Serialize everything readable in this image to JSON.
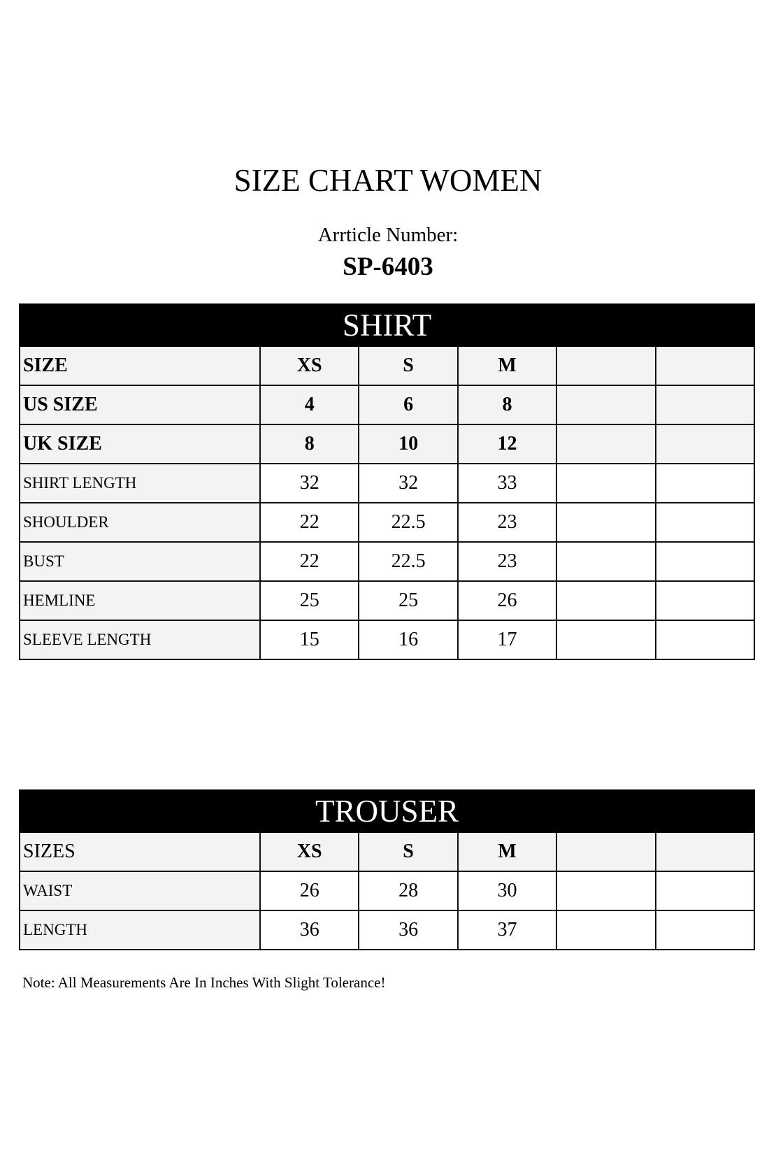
{
  "title": "SIZE CHART WOMEN",
  "article_label": "Arrticle Number:",
  "article_number": "SP-6403",
  "shirt": {
    "heading": "SHIRT",
    "header_rows": [
      {
        "label": "SIZE",
        "values": [
          "XS",
          "S",
          "M",
          "",
          ""
        ]
      },
      {
        "label": "US SIZE",
        "values": [
          "4",
          "6",
          "8",
          "",
          ""
        ]
      },
      {
        "label": "UK SIZE",
        "values": [
          "8",
          "10",
          "12",
          "",
          ""
        ]
      }
    ],
    "rows": [
      {
        "label": "SHIRT LENGTH",
        "values": [
          "32",
          "32",
          "33",
          "",
          ""
        ]
      },
      {
        "label": "SHOULDER",
        "values": [
          "22",
          "22.5",
          "23",
          "",
          ""
        ]
      },
      {
        "label": "BUST",
        "values": [
          "22",
          "22.5",
          "23",
          "",
          ""
        ]
      },
      {
        "label": "HEMLINE",
        "values": [
          "25",
          "25",
          "26",
          "",
          ""
        ]
      },
      {
        "label": "SLEEVE LENGTH",
        "values": [
          "15",
          "16",
          "17",
          "",
          ""
        ]
      }
    ]
  },
  "trouser": {
    "heading": "TROUSER",
    "header_row": {
      "label": "SIZES",
      "values": [
        "XS",
        "S",
        "M",
        "",
        ""
      ]
    },
    "rows": [
      {
        "label": "WAIST",
        "values": [
          "26",
          "28",
          "30",
          "",
          ""
        ]
      },
      {
        "label": "LENGTH",
        "values": [
          "36",
          "36",
          "37",
          "",
          ""
        ]
      }
    ]
  },
  "note": "Note: All Measurements Are In Inches With Slight Tolerance!"
}
